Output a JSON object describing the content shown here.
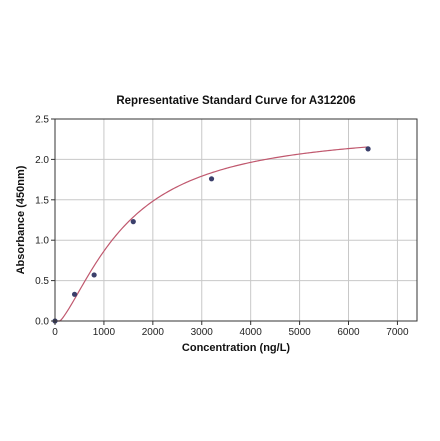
{
  "chart_data": {
    "type": "scatter",
    "title": "Representative Standard Curve for A312206",
    "xlabel": "Concentration (ng/L)",
    "ylabel": "Absorbance (450nm)",
    "xlim": [
      0,
      7400
    ],
    "ylim": [
      0,
      2.5
    ],
    "x_ticks": [
      0,
      1000,
      2000,
      3000,
      4000,
      5000,
      6000,
      7000
    ],
    "y_ticks": [
      0.0,
      0.5,
      1.0,
      1.5,
      2.0,
      2.5
    ],
    "x_tick_labels": [
      "0",
      "1000",
      "2000",
      "3000",
      "4000",
      "5000",
      "6000",
      "7000"
    ],
    "y_tick_labels": [
      "0.0",
      "0.5",
      "1.0",
      "1.5",
      "2.0",
      "2.5"
    ],
    "grid": true,
    "series": [
      {
        "x": [
          0,
          400,
          800,
          1600,
          3200,
          6400
        ],
        "y": [
          0.0,
          0.33,
          0.57,
          1.23,
          1.76,
          2.13
        ]
      }
    ],
    "fit_curve": {
      "type": "4PL",
      "a": -0.05,
      "b": 1.5,
      "c": 1400,
      "d": 2.38
    },
    "colors": {
      "points": "#3b3f6b",
      "curve": "#c0586e",
      "grid": "#c8c8c8",
      "frame": "#333333"
    }
  }
}
